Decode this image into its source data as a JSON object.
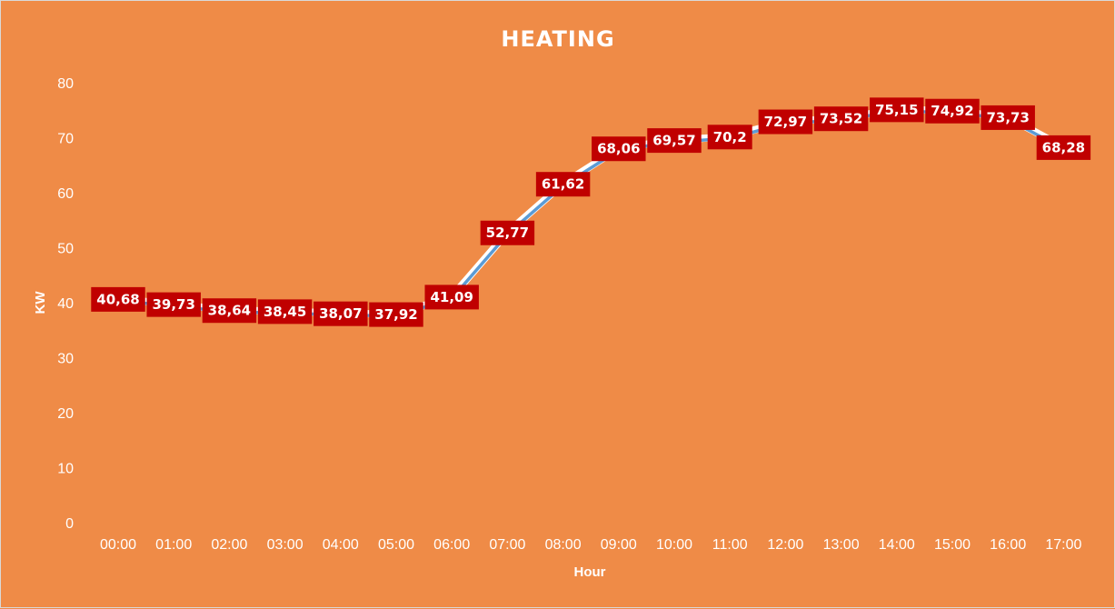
{
  "chart_data": {
    "type": "line",
    "title": "HEATING",
    "xlabel": "Hour",
    "ylabel": "KW",
    "ylim": [
      0,
      80
    ],
    "yticks": [
      "0",
      "10",
      "20",
      "30",
      "40",
      "50",
      "60",
      "70",
      "80"
    ],
    "categories": [
      "00:00",
      "01:00",
      "02:00",
      "03:00",
      "04:00",
      "05:00",
      "06:00",
      "07:00",
      "08:00",
      "09:00",
      "10:00",
      "11:00",
      "12:00",
      "13:00",
      "14:00",
      "15:00",
      "16:00",
      "17:00"
    ],
    "series": [
      {
        "values": [
          40.68,
          39.73,
          38.64,
          38.45,
          38.07,
          37.92,
          41.09,
          52.77,
          61.62,
          68.06,
          69.57,
          70.2,
          72.97,
          73.52,
          75.15,
          74.92,
          73.73,
          68.28
        ],
        "labels": [
          "40,68",
          "39,73",
          "38,64",
          "38,45",
          "38,07",
          "37,92",
          "41,09",
          "52,77",
          "61,62",
          "68,06",
          "69,57",
          "70,2",
          "72,97",
          "73,52",
          "75,15",
          "74,92",
          "73,73",
          "68,28"
        ]
      }
    ],
    "grid": false,
    "drop_lines": true,
    "colors": {
      "background": "#ef8b47",
      "line": "#5b9bd5",
      "line_outline": "#ffffff",
      "label_fill": "#c00000",
      "text": "#ffffff"
    }
  }
}
